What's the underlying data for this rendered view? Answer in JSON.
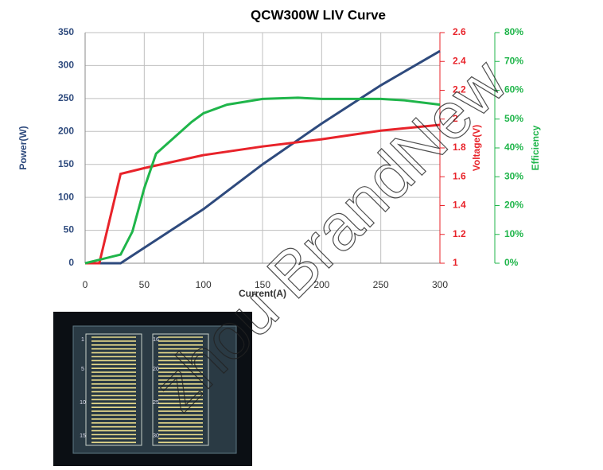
{
  "chart_data": {
    "type": "line",
    "title": "QCW300W LIV Curve",
    "xlabel": "Current(A)",
    "ylabel": "Power(W)",
    "y2label": "Voltage(V)",
    "y3label": "Efficiency",
    "xlim": [
      0,
      300
    ],
    "xticks": [
      0,
      50,
      100,
      150,
      200,
      250,
      300
    ],
    "ylim": [
      0,
      350
    ],
    "yticks": [
      0,
      50,
      100,
      150,
      200,
      250,
      300,
      350
    ],
    "y2lim": [
      1,
      2.6
    ],
    "y2ticks": [
      1,
      1.2,
      1.4,
      1.6,
      1.8,
      2,
      2.2,
      2.4,
      2.6
    ],
    "y3lim": [
      0,
      80
    ],
    "y3ticks": [
      {
        "value": 0,
        "label": "0%"
      },
      {
        "value": 10,
        "label": "10%"
      },
      {
        "value": 20,
        "label": "20%"
      },
      {
        "value": 30,
        "label": "30%"
      },
      {
        "value": 40,
        "label": "40%"
      },
      {
        "value": 50,
        "label": "50%"
      },
      {
        "value": 60,
        "label": "60%"
      },
      {
        "value": 70,
        "label": "70%"
      },
      {
        "value": 80,
        "label": "80%"
      }
    ],
    "grid": true,
    "series": [
      {
        "name": "Power",
        "color": "#2e4a7d",
        "axis": "y",
        "x": [
          0,
          30,
          100,
          150,
          200,
          250,
          300
        ],
        "values": [
          0,
          0,
          82,
          150,
          212,
          270,
          322
        ]
      },
      {
        "name": "Voltage",
        "color": "#e8232a",
        "axis": "y2",
        "x": [
          0,
          12,
          30,
          50,
          100,
          150,
          200,
          250,
          300
        ],
        "values": [
          1,
          1,
          1.62,
          1.66,
          1.75,
          1.81,
          1.86,
          1.92,
          1.96
        ]
      },
      {
        "name": "Efficiency",
        "color": "#1fb54a",
        "axis": "y3",
        "x": [
          0,
          30,
          40,
          50,
          60,
          90,
          100,
          120,
          150,
          180,
          200,
          250,
          270,
          300
        ],
        "values": [
          0,
          3,
          11,
          26,
          38,
          49,
          52,
          55,
          57,
          57.4,
          57,
          57,
          56.5,
          55
        ]
      }
    ]
  },
  "image": {
    "labels": [
      "1",
      "5",
      "10",
      "15",
      "16",
      "20",
      "25",
      "30"
    ]
  },
  "watermark": "zhou BrandNew"
}
